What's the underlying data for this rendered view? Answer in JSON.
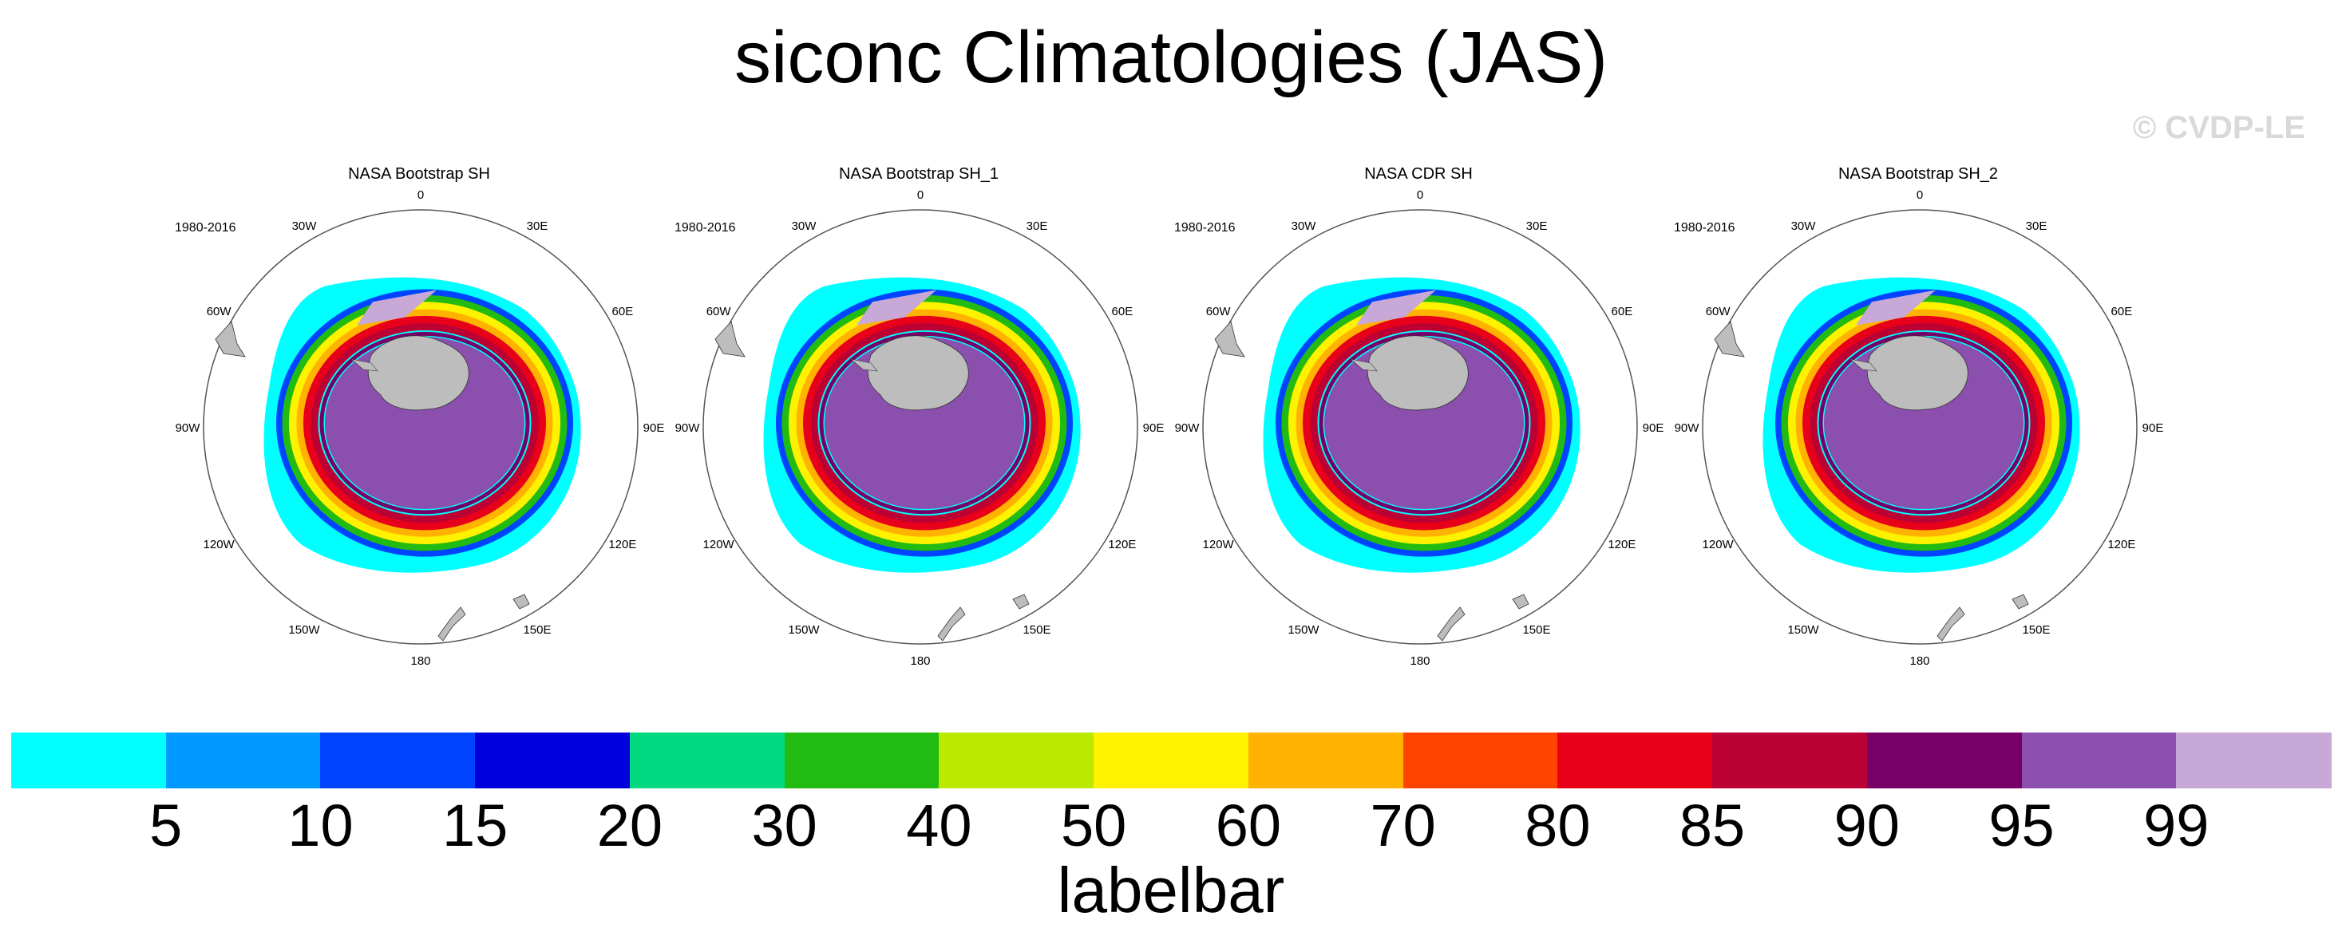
{
  "title": "siconc Climatologies (JAS)",
  "watermark": "© CVDP-LE",
  "colors": {
    "land": "#bdbdbd",
    "outline": "#333333",
    "colorbar": [
      "#00ffff",
      "#0099ff",
      "#0044ff",
      "#0000dd",
      "#00d980",
      "#22bb11",
      "#bbea00",
      "#fff200",
      "#ffb300",
      "#ff4400",
      "#e8001a",
      "#bb0033",
      "#770066",
      "#8b4fae",
      "#c7a8d6"
    ]
  },
  "chart_data": {
    "type": "heatmap",
    "projection": "south polar stereographic",
    "variable": "siconc",
    "season": "JAS",
    "units": "%",
    "panels": [
      {
        "title": "NASA Bootstrap SH",
        "period": "1980-2016"
      },
      {
        "title": "NASA Bootstrap SH_1",
        "period": "1980-2016"
      },
      {
        "title": "NASA CDR SH",
        "period": "1980-2016"
      },
      {
        "title": "NASA Bootstrap SH_2",
        "period": "1980-2016"
      }
    ],
    "longitude_labels": [
      "0",
      "30E",
      "60E",
      "90E",
      "120E",
      "150E",
      "180",
      "150W",
      "120W",
      "90W",
      "60W",
      "30W"
    ],
    "colorbar": {
      "levels": [
        "5",
        "10",
        "15",
        "20",
        "30",
        "40",
        "50",
        "60",
        "70",
        "80",
        "85",
        "90",
        "95",
        "99"
      ],
      "label": "labelbar"
    }
  }
}
